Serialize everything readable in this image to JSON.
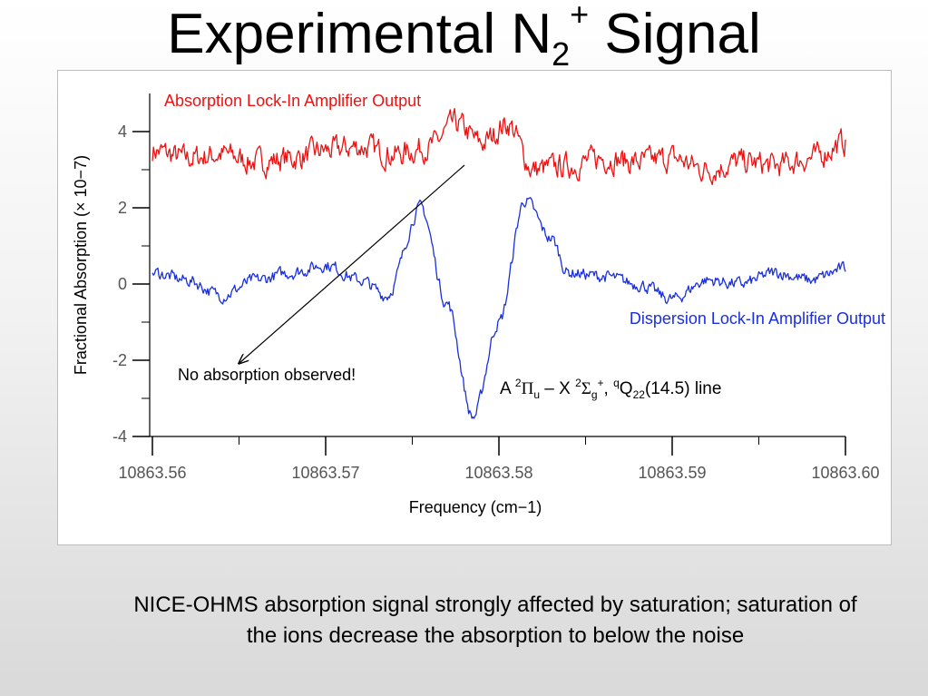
{
  "slide": {
    "title_main": "Experimental N",
    "title_sub": "2",
    "title_sup": "+",
    "title_tail": " Signal",
    "caption": "NICE-OHMS absorption signal strongly affected by saturation; saturation of the ions decrease the absorption to below the noise"
  },
  "chart_data": {
    "type": "line",
    "xlabel": "Frequency (cm−1)",
    "ylabel": "Fractional Absorption (× 10−7)",
    "xlim": [
      10863.56,
      10863.6
    ],
    "ylim": [
      -4.0,
      5.0
    ],
    "x_ticks": [
      10863.56,
      10863.57,
      10863.58,
      10863.59,
      10863.6
    ],
    "x_tick_labels": [
      "10863.56",
      "10863.57",
      "10863.58",
      "10863.59",
      "10863.60"
    ],
    "y_ticks": [
      4,
      2,
      0,
      -2,
      -4
    ],
    "y_tick_labels": [
      "4",
      "2",
      "0",
      "-2",
      "-4"
    ],
    "grid": false,
    "series": [
      {
        "name": "Absorption Lock-In Amplifier Output",
        "color": "#ee1111",
        "x": [
          10863.56,
          10863.562,
          10863.564,
          10863.566,
          10863.568,
          10863.57,
          10863.572,
          10863.574,
          10863.576,
          10863.5775,
          10863.579,
          10863.5805,
          10863.582,
          10863.584,
          10863.586,
          10863.588,
          10863.59,
          10863.592,
          10863.594,
          10863.596,
          10863.598,
          10863.6
        ],
        "values": [
          3.5,
          3.3,
          3.4,
          3.2,
          3.3,
          3.5,
          3.6,
          3.4,
          3.6,
          4.2,
          3.7,
          4.2,
          3.0,
          3.1,
          3.3,
          3.2,
          3.3,
          3.0,
          3.2,
          3.1,
          3.3,
          3.7
        ]
      },
      {
        "name": "Dispersion Lock-In Amplifier Output",
        "color": "#1a2fe0",
        "x": [
          10863.56,
          10863.562,
          10863.564,
          10863.566,
          10863.568,
          10863.57,
          10863.572,
          10863.5735,
          10863.5755,
          10863.577,
          10863.5785,
          10863.58,
          10863.5815,
          10863.583,
          10863.584,
          10863.586,
          10863.588,
          10863.59,
          10863.592,
          10863.594,
          10863.596,
          10863.598,
          10863.6
        ],
        "values": [
          0.3,
          0.1,
          -0.3,
          0.1,
          0.3,
          0.5,
          0.1,
          -0.3,
          2.0,
          -0.5,
          -3.5,
          -1.0,
          2.2,
          1.2,
          0.3,
          0.2,
          0.0,
          -0.4,
          0.1,
          0.0,
          0.3,
          0.1,
          0.4
        ]
      }
    ],
    "annotations": {
      "no_absorption": "No absorption observed!",
      "transition_A": "A ",
      "transition_sup1": "2",
      "transition_Pi": "Π",
      "transition_sub_u": "u",
      "transition_mid": " – X ",
      "transition_sup2": "2",
      "transition_Sigma": "Σ",
      "transition_sub_g": "g",
      "transition_sup_plus": "+",
      "transition_comma": ", ",
      "transition_sup_q": "q",
      "transition_Q": "Q",
      "transition_sub_22": "22",
      "transition_tail": "(14.5) line"
    }
  }
}
